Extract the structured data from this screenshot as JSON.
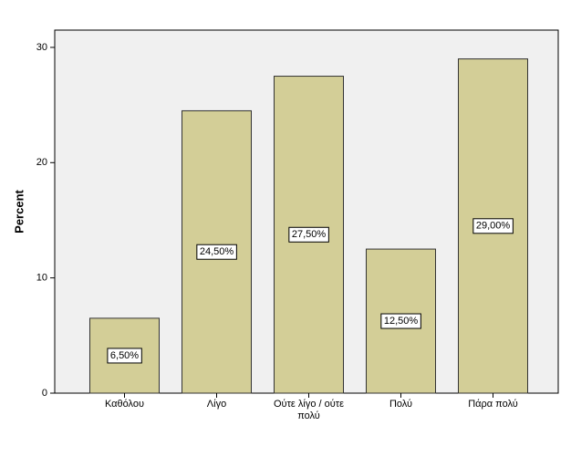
{
  "chart_data": {
    "type": "bar",
    "y_label": "Percent",
    "categories": [
      "Καθόλου",
      "Λίγο",
      "Ούτε λίγο / ούτε πολύ",
      "Πολύ",
      "Πάρα πολύ"
    ],
    "values": [
      6.5,
      24.5,
      27.5,
      12.5,
      29
    ],
    "value_labels": [
      "6,50%",
      "24,50%",
      "27,50%",
      "12,50%",
      "29,00%"
    ],
    "color": "#d3ce97",
    "ylim": [
      0,
      31.5
    ],
    "yticks": [
      0,
      10,
      20,
      30
    ],
    "grid": false
  }
}
